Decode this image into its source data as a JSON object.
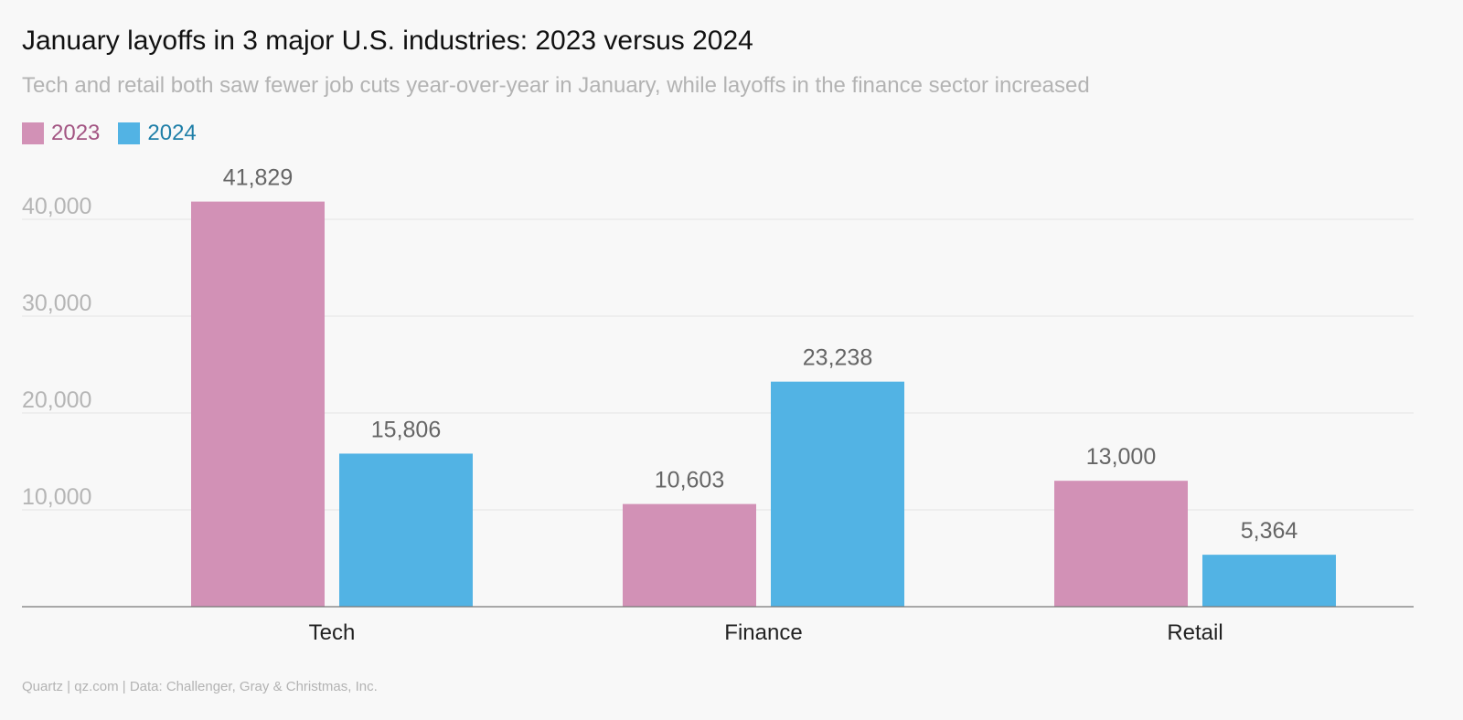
{
  "title": "January layoffs in 3 major U.S. industries: 2023 versus 2024",
  "subtitle": "Tech and retail both saw fewer job cuts year-over-year in January, while layoffs in the finance sector increased",
  "source": "Quartz | qz.com | Data: Challenger, Gray & Christmas, Inc.",
  "chart_data": {
    "type": "bar",
    "categories": [
      "Tech",
      "Finance",
      "Retail"
    ],
    "series": [
      {
        "name": "2023",
        "values": [
          41829,
          10603,
          13000
        ],
        "labels": [
          "41,829",
          "10,603",
          "13,000"
        ],
        "color": "#d291b6",
        "text_color": "#a35583"
      },
      {
        "name": "2024",
        "values": [
          15806,
          23238,
          5364
        ],
        "labels": [
          "15,806",
          "23,238",
          "5,364"
        ],
        "color": "#52b3e4",
        "text_color": "#1f7fa8"
      }
    ],
    "yticks": [
      10000,
      20000,
      30000,
      40000
    ],
    "ytick_labels": [
      "10,000",
      "20,000",
      "30,000",
      "40,000"
    ],
    "ylim": [
      0,
      45000
    ],
    "grid": true,
    "legend": "top-left"
  }
}
